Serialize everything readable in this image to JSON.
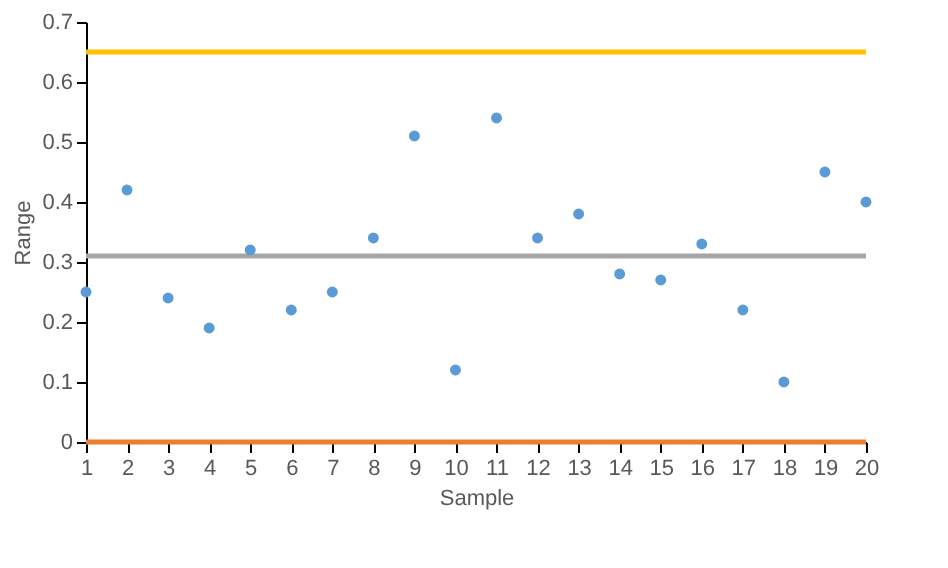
{
  "chart_data": {
    "type": "scatter",
    "xlabel": "Sample",
    "ylabel": "Range",
    "x": [
      1,
      2,
      3,
      4,
      5,
      6,
      7,
      8,
      9,
      10,
      11,
      12,
      13,
      14,
      15,
      16,
      17,
      18,
      19,
      20
    ],
    "series": [
      {
        "color": "#5b9bd5",
        "values": [
          0.25,
          0.42,
          0.24,
          0.19,
          0.32,
          0.22,
          0.25,
          0.34,
          0.51,
          0.12,
          0.54,
          0.34,
          0.38,
          0.28,
          0.27,
          0.33,
          0.22,
          0.1,
          0.45,
          0.4
        ]
      }
    ],
    "xlim": [
      1,
      20
    ],
    "xticks": [
      1,
      2,
      3,
      4,
      5,
      6,
      7,
      8,
      9,
      10,
      11,
      12,
      13,
      14,
      15,
      16,
      17,
      18,
      19,
      20
    ],
    "ylim": [
      0,
      0.7
    ],
    "yticks": [
      0,
      0.1,
      0.2,
      0.3,
      0.4,
      0.5,
      0.6,
      0.7
    ],
    "ref_lines": [
      {
        "axis": "y",
        "value": 0.65,
        "color": "#ffc000"
      },
      {
        "axis": "y",
        "value": 0.31,
        "color": "#a5a5a5"
      },
      {
        "axis": "y",
        "value": 0,
        "color": "#ed7d31"
      }
    ],
    "grid": false,
    "marker": "circle"
  }
}
